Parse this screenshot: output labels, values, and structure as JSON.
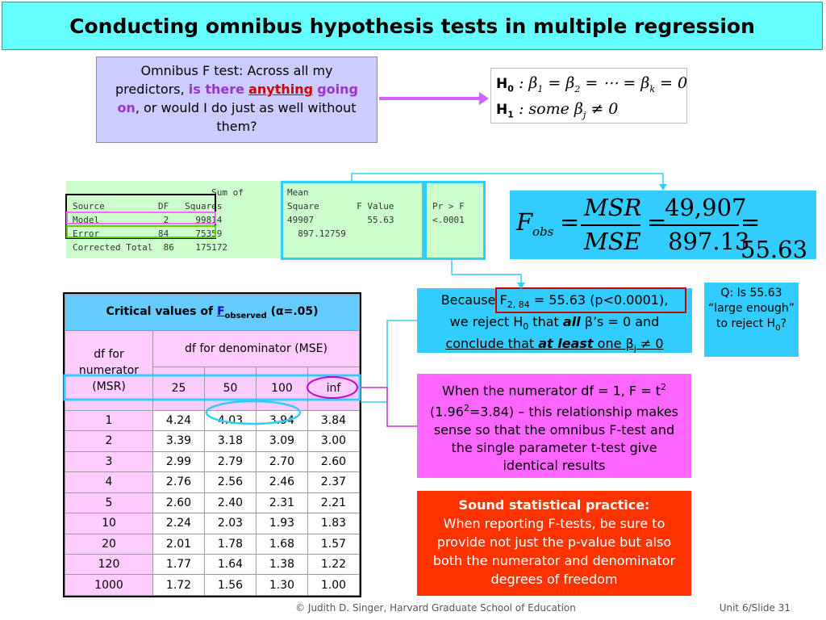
{
  "title": "Conducting omnibus hypothesis tests in multiple regression",
  "omnibus": {
    "part1": "Omnibus F test: Across all my predictors,",
    "part2": "is there",
    "part3": "anything",
    "part4": "going on",
    "part5": ", or would I do just as well without them?"
  },
  "hypotheses": {
    "h0_label": "H",
    "h0_sub": "0",
    "h0_expr_a": ": β",
    "h0_expr_b": " = β",
    "h0_expr_c": " = ⋯ = β",
    "h0_expr_d": " = 0",
    "h0_sub1": "1",
    "h0_sub2": "2",
    "h0_subk": "k",
    "h1_label": "H",
    "h1_sub": "1",
    "h1_expr_a": ": some β",
    "h1_subj": "j",
    "h1_expr_b": " ≠ 0"
  },
  "anova": {
    "text_left": "                          Sum of\nSource          DF   Squares\nModel            2     99814\nError           84     75359\nCorrected Total  86    175172",
    "text_mid": "Mean\nSquare       F Value\n49907          55.63\n  897.12759",
    "text_right": "Pr > F\n<.0001"
  },
  "fobs": {
    "f": "F",
    "obs": "obs",
    "msr": "MSR",
    "mse": "MSE",
    "num": "49,907",
    "den": "897.13",
    "result": "= 55.63",
    "eq": "="
  },
  "critical": {
    "title_a": "Critical values of ",
    "title_f": "F",
    "title_sub": "observed",
    "title_b": " (α=.05)",
    "row_header": "df for numerator (MSR)",
    "col_header": "df for denominator (MSE)",
    "cols": [
      "25",
      "50",
      "100",
      "inf"
    ],
    "rows": [
      {
        "df": "1",
        "v": [
          "4.24",
          "4.03",
          "3.94",
          "3.84"
        ]
      },
      {
        "df": "2",
        "v": [
          "3.39",
          "3.18",
          "3.09",
          "3.00"
        ]
      },
      {
        "df": "3",
        "v": [
          "2.99",
          "2.79",
          "2.70",
          "2.60"
        ]
      },
      {
        "df": "4",
        "v": [
          "2.76",
          "2.56",
          "2.46",
          "2.37"
        ]
      },
      {
        "df": "5",
        "v": [
          "2.60",
          "2.40",
          "2.31",
          "2.21"
        ]
      },
      {
        "df": "10",
        "v": [
          "2.24",
          "2.03",
          "1.93",
          "1.83"
        ]
      },
      {
        "df": "20",
        "v": [
          "2.01",
          "1.78",
          "1.68",
          "1.57"
        ]
      },
      {
        "df": "120",
        "v": [
          "1.77",
          "1.64",
          "1.38",
          "1.22"
        ]
      },
      {
        "df": "1000",
        "v": [
          "1.72",
          "1.56",
          "1.30",
          "1.00"
        ]
      }
    ]
  },
  "because": {
    "a": "Because F",
    "sub": "2, 84",
    "b": " = 55.63 (p<0.0001),",
    "c": "we reject H",
    "c_sub": "0",
    "d": " that ",
    "all": "all",
    "e": " β’s = 0 and",
    "f": "conclude that ",
    "atleast": "at least",
    "g": " one β",
    "g_sub": "j",
    "h": " ≠ 0"
  },
  "question": {
    "text": "Q: Is 55.63 “large enough” to reject H",
    "sub": "0",
    "end": "?"
  },
  "tbox": {
    "a": "When the numerator df = 1, F = t",
    "sup1": "2",
    "b": " (1.96",
    "sup2": "2",
    "c": "=3.84) – this relationship makes sense so that the omnibus F-test and the single parameter t-test give identical results"
  },
  "practice": {
    "heading": "Sound statistical practice:",
    "body": "When reporting F-tests, be sure to provide not just the p-value but also both the numerator and denominator degrees of freedom"
  },
  "footer": {
    "copyright": "© Judith D. Singer, Harvard Graduate School of Education",
    "slide": "Unit 6/Slide 31"
  }
}
